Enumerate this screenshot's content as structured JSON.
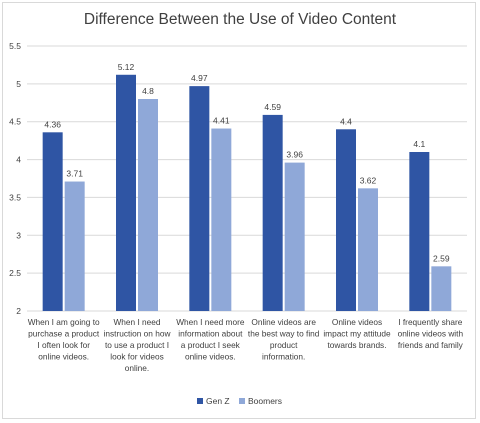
{
  "chart_data": {
    "type": "bar",
    "title": "Difference Between the Use of Video Content",
    "xlabel": "",
    "ylabel": "",
    "ylim": [
      2,
      5.5
    ],
    "yticks": [
      "2",
      "2.5",
      "3",
      "3.5",
      "4",
      "4.5",
      "5",
      "5.5"
    ],
    "grid": "horizontal",
    "legend_position": "bottom",
    "categories": [
      [
        "When I am going to",
        "purchase a product",
        "I often look for",
        "online videos."
      ],
      [
        "When I need",
        "instruction on how",
        "to use a product I",
        "look for videos",
        "online."
      ],
      [
        "When I need more",
        "information about",
        "a product I seek",
        "online videos."
      ],
      [
        "Online videos are",
        "the best way to find",
        "product",
        "information."
      ],
      [
        "Online videos",
        "impact my attitude",
        "towards brands."
      ],
      [
        "I frequently share",
        "online videos with",
        "friends and family"
      ]
    ],
    "series": [
      {
        "name": "Gen Z",
        "color": "#2f55a4",
        "values": [
          4.36,
          5.12,
          4.97,
          4.59,
          4.4,
          4.1
        ],
        "labels": [
          "4.36",
          "5.12",
          "4.97",
          "4.59",
          "4.4",
          "4.1"
        ]
      },
      {
        "name": "Boomers",
        "color": "#8fa8d8",
        "values": [
          3.71,
          4.8,
          4.41,
          3.96,
          3.62,
          2.59
        ],
        "labels": [
          "3.71",
          "4.8",
          "4.41",
          "3.96",
          "3.62",
          "2.59"
        ]
      }
    ]
  }
}
